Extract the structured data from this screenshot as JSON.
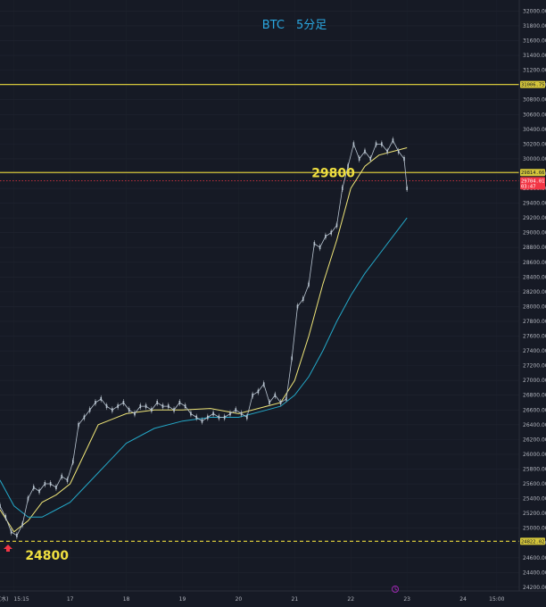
{
  "chart_data": {
    "type": "line",
    "title": "BTC　5分足",
    "yticks": [
      24200,
      24400,
      24600,
      24800,
      25000,
      25200,
      25400,
      25600,
      25800,
      26000,
      26200,
      26400,
      26600,
      26800,
      27000,
      27200,
      27400,
      27600,
      27800,
      28000,
      28200,
      28400,
      28600,
      28800,
      29000,
      29200,
      29400,
      29600,
      29800,
      30000,
      30200,
      30400,
      30600,
      30800,
      31000,
      31200,
      31400,
      31600,
      31800,
      32000
    ],
    "xtick_labels": [
      {
        "label": "(水)　15:15",
        "x": 16.0
      },
      {
        "label": "17",
        "x": 17.0
      },
      {
        "label": "18",
        "x": 18.0
      },
      {
        "label": "19",
        "x": 19.0
      },
      {
        "label": "20",
        "x": 20.0
      },
      {
        "label": "21",
        "x": 21.0
      },
      {
        "label": "22",
        "x": 22.0
      },
      {
        "label": "23",
        "x": 23.0
      },
      {
        "label": "24",
        "x": 24.0
      },
      {
        "label": "15:00",
        "x": 24.6
      }
    ],
    "xlim": [
      15.75,
      25.0
    ],
    "ylim": [
      24150,
      32150
    ],
    "hlines": [
      {
        "value": 31006.75,
        "label": "31006.75",
        "color": "#d4c53a",
        "style": "solid"
      },
      {
        "value": 29814.66,
        "label": "29814.66",
        "color": "#d4c53a",
        "style": "solid"
      },
      {
        "value": 24822.02,
        "label": "24822.02",
        "color": "#d4c53a",
        "style": "dashed"
      },
      {
        "value": 29704.01,
        "label": "29704.01",
        "sublabel": "03:47",
        "color": "#f23645",
        "style": "dotted"
      }
    ],
    "annotations": [
      {
        "text": "29800",
        "x": 21.3,
        "y": 29800
      },
      {
        "text": "24800",
        "x": 16.2,
        "y": 24620
      }
    ],
    "series": [
      {
        "style": "candles",
        "color": "#b8c4d0",
        "wick": "#a8b0b8",
        "x": [
          15.75,
          15.85,
          15.95,
          16.05,
          16.15,
          16.25,
          16.35,
          16.45,
          16.55,
          16.65,
          16.75,
          16.85,
          16.95,
          17.05,
          17.15,
          17.25,
          17.35,
          17.45,
          17.55,
          17.65,
          17.75,
          17.85,
          17.95,
          18.05,
          18.15,
          18.25,
          18.35,
          18.45,
          18.55,
          18.65,
          18.75,
          18.85,
          18.95,
          19.05,
          19.15,
          19.25,
          19.35,
          19.45,
          19.55,
          19.65,
          19.75,
          19.85,
          19.95,
          20.05,
          20.15,
          20.25,
          20.35,
          20.45,
          20.55,
          20.65,
          20.75,
          20.85,
          20.95,
          21.05,
          21.15,
          21.25,
          21.35,
          21.45,
          21.55,
          21.65,
          21.75,
          21.85,
          21.95,
          22.05,
          22.15,
          22.25,
          22.35,
          22.45,
          22.55,
          22.65,
          22.75,
          22.85,
          22.95,
          23.0
        ],
        "values": [
          25300,
          25150,
          24950,
          24900,
          25050,
          25400,
          25550,
          25500,
          25600,
          25600,
          25550,
          25700,
          25650,
          25900,
          26400,
          26500,
          26600,
          26700,
          26750,
          26650,
          26600,
          26650,
          26700,
          26600,
          26550,
          26650,
          26650,
          26600,
          26700,
          26650,
          26650,
          26600,
          26700,
          26650,
          26550,
          26500,
          26450,
          26500,
          26550,
          26500,
          26500,
          26550,
          26600,
          26550,
          26500,
          26800,
          26850,
          26950,
          26700,
          26800,
          26700,
          26750,
          27300,
          28000,
          28100,
          28300,
          28850,
          28800,
          28950,
          29000,
          29100,
          29600,
          29900,
          30200,
          30000,
          30100,
          30000,
          30200,
          30200,
          30100,
          30250,
          30100,
          30000,
          29600
        ]
      },
      {
        "style": "line",
        "color": "#f0e678",
        "x": [
          15.75,
          16.0,
          16.25,
          16.5,
          16.75,
          17.0,
          17.25,
          17.5,
          18.0,
          18.5,
          19.0,
          19.5,
          20.0,
          20.5,
          20.75,
          21.0,
          21.25,
          21.5,
          21.75,
          22.0,
          22.25,
          22.5,
          22.75,
          23.0
        ],
        "values": [
          25250,
          24950,
          25100,
          25350,
          25450,
          25600,
          26000,
          26400,
          26550,
          26600,
          26600,
          26620,
          26550,
          26650,
          26700,
          27000,
          27600,
          28300,
          28900,
          29600,
          29900,
          30050,
          30100,
          30150
        ]
      },
      {
        "style": "line",
        "color": "#24a8c8",
        "x": [
          15.75,
          16.0,
          16.25,
          16.5,
          16.75,
          17.0,
          17.25,
          17.5,
          18.0,
          18.5,
          19.0,
          19.5,
          20.0,
          20.5,
          20.75,
          21.0,
          21.25,
          21.5,
          21.75,
          22.0,
          22.25,
          22.5,
          22.75,
          23.0
        ],
        "values": [
          25650,
          25300,
          25150,
          25150,
          25250,
          25350,
          25550,
          25750,
          26150,
          26350,
          26450,
          26500,
          26500,
          26600,
          26650,
          26800,
          27050,
          27400,
          27800,
          28150,
          28450,
          28700,
          28950,
          29200
        ]
      }
    ]
  }
}
